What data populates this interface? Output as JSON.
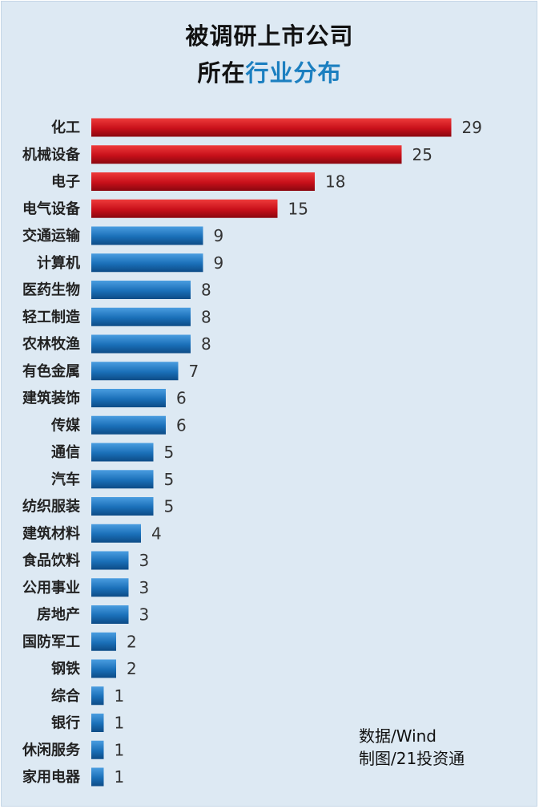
{
  "title": {
    "line1": "被调研上市公司",
    "line2_prefix": "所在",
    "line2_highlight": "行业分布"
  },
  "footnote": {
    "source": "数据/Wind",
    "credit": "制图/21投资通"
  },
  "colors": {
    "highlight_bar": "#c8101a",
    "regular_bar": "#1a6fb8",
    "title_accent": "#1b7fc0",
    "background": "#dde9f3"
  },
  "chart_data": {
    "type": "bar",
    "orientation": "horizontal",
    "categories": [
      "化工",
      "机械设备",
      "电子",
      "电气设备",
      "交通运输",
      "计算机",
      "医药生物",
      "轻工制造",
      "农林牧渔",
      "有色金属",
      "建筑装饰",
      "传媒",
      "通信",
      "汽车",
      "纺织服装",
      "建筑材料",
      "食品饮料",
      "公用事业",
      "房地产",
      "国防军工",
      "钢铁",
      "综合",
      "银行",
      "休闲服务",
      "家用电器"
    ],
    "values": [
      29,
      25,
      18,
      15,
      9,
      9,
      8,
      8,
      8,
      7,
      6,
      6,
      5,
      5,
      5,
      4,
      3,
      3,
      3,
      2,
      2,
      1,
      1,
      1,
      1
    ],
    "highlighted_top": 4,
    "data_labels": true,
    "grid": false,
    "legend": "none"
  }
}
